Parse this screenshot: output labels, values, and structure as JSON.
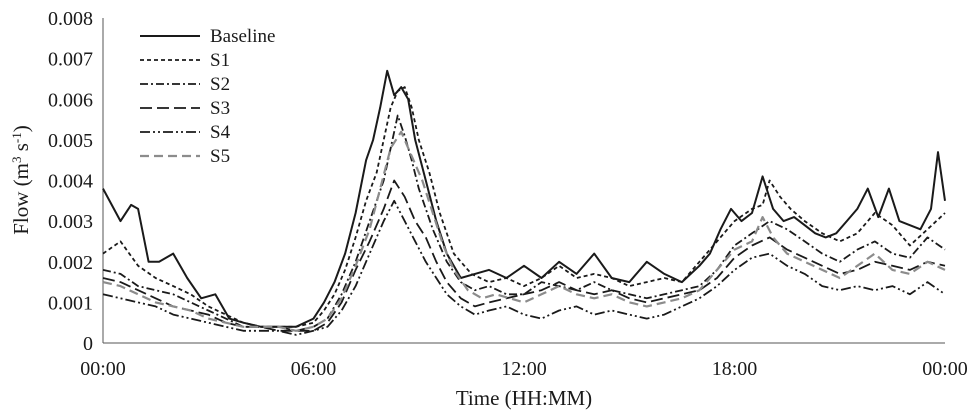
{
  "chart_data": {
    "type": "line",
    "xlabel": "Time (HH:MM)",
    "ylabel_main": "Flow (m",
    "ylabel_sup1": "3",
    "ylabel_mid": " s",
    "ylabel_sup2": "-1",
    "ylabel_end": ")",
    "xlim": [
      0,
      24
    ],
    "ylim": [
      0,
      0.008
    ],
    "x_ticks": [
      {
        "value": 0,
        "label": "00:00"
      },
      {
        "value": 6,
        "label": "06:00"
      },
      {
        "value": 12,
        "label": "12:00"
      },
      {
        "value": 18,
        "label": "18:00"
      },
      {
        "value": 24,
        "label": "00:00"
      }
    ],
    "y_ticks": [
      {
        "value": 0,
        "label": "0"
      },
      {
        "value": 0.001,
        "label": "0.001"
      },
      {
        "value": 0.002,
        "label": "0.002"
      },
      {
        "value": 0.003,
        "label": "0.003"
      },
      {
        "value": 0.004,
        "label": "0.004"
      },
      {
        "value": 0.005,
        "label": "0.005"
      },
      {
        "value": 0.006,
        "label": "0.006"
      },
      {
        "value": 0.007,
        "label": "0.007"
      },
      {
        "value": 0.008,
        "label": "0.008"
      }
    ],
    "grid": false,
    "legend_position": "top-left",
    "series": [
      {
        "name": "Baseline",
        "color": "#1a1a1a",
        "dash": "",
        "width": 2,
        "x": [
          0,
          0.5,
          0.8,
          1.0,
          1.3,
          1.6,
          2.0,
          2.4,
          2.8,
          3.2,
          3.6,
          4.0,
          4.5,
          5.0,
          5.5,
          6.0,
          6.3,
          6.6,
          6.9,
          7.2,
          7.5,
          7.7,
          7.9,
          8.1,
          8.3,
          8.5,
          8.7,
          8.9,
          9.2,
          9.5,
          9.8,
          10.2,
          10.6,
          11.0,
          11.5,
          12.0,
          12.5,
          13.0,
          13.5,
          14.0,
          14.5,
          15.0,
          15.5,
          16.0,
          16.5,
          17.0,
          17.3,
          17.6,
          17.9,
          18.2,
          18.5,
          18.8,
          19.1,
          19.4,
          19.7,
          20.0,
          20.3,
          20.6,
          20.9,
          21.2,
          21.5,
          21.8,
          22.1,
          22.4,
          22.7,
          23.0,
          23.3,
          23.6,
          23.8,
          24.0
        ],
        "y": [
          0.0038,
          0.003,
          0.0034,
          0.0033,
          0.002,
          0.002,
          0.0022,
          0.0016,
          0.0011,
          0.0012,
          0.0006,
          0.0005,
          0.0004,
          0.0004,
          0.0004,
          0.0006,
          0.001,
          0.0015,
          0.0022,
          0.0032,
          0.0045,
          0.005,
          0.0058,
          0.0067,
          0.0061,
          0.0063,
          0.006,
          0.005,
          0.004,
          0.003,
          0.0022,
          0.0016,
          0.0017,
          0.0018,
          0.0016,
          0.0019,
          0.0016,
          0.002,
          0.0017,
          0.0022,
          0.0016,
          0.0015,
          0.002,
          0.0017,
          0.0015,
          0.0019,
          0.0022,
          0.0028,
          0.0033,
          0.003,
          0.0032,
          0.0041,
          0.0033,
          0.003,
          0.0031,
          0.0029,
          0.0027,
          0.0026,
          0.0027,
          0.003,
          0.0033,
          0.0038,
          0.0031,
          0.0038,
          0.003,
          0.0029,
          0.0028,
          0.0033,
          0.0047,
          0.0035
        ]
      },
      {
        "name": "S1",
        "color": "#1a1a1a",
        "dash": "4,3",
        "width": 1.8,
        "x": [
          0,
          0.5,
          1.0,
          1.5,
          2.0,
          2.5,
          3.0,
          3.5,
          4.0,
          4.5,
          5.0,
          5.5,
          6.0,
          6.3,
          6.6,
          6.9,
          7.2,
          7.5,
          7.8,
          8.0,
          8.2,
          8.4,
          8.6,
          8.8,
          9.0,
          9.3,
          9.6,
          10.0,
          10.5,
          11.0,
          11.5,
          12.0,
          12.5,
          13.0,
          13.5,
          14.0,
          14.5,
          15.0,
          15.5,
          16.0,
          16.5,
          17.0,
          17.5,
          18.0,
          18.5,
          18.8,
          19.0,
          19.3,
          19.6,
          20.0,
          20.5,
          21.0,
          21.5,
          22.0,
          22.5,
          23.0,
          23.5,
          24.0
        ],
        "y": [
          0.0022,
          0.0025,
          0.0019,
          0.0016,
          0.0014,
          0.0012,
          0.0009,
          0.0007,
          0.0005,
          0.0004,
          0.0004,
          0.0004,
          0.0005,
          0.0008,
          0.0012,
          0.0018,
          0.0026,
          0.0035,
          0.0042,
          0.005,
          0.0058,
          0.0062,
          0.0063,
          0.0058,
          0.005,
          0.0042,
          0.0032,
          0.0022,
          0.0017,
          0.0015,
          0.0016,
          0.0014,
          0.0016,
          0.0019,
          0.0016,
          0.0017,
          0.0016,
          0.0014,
          0.0015,
          0.0016,
          0.0015,
          0.002,
          0.0025,
          0.003,
          0.0033,
          0.0034,
          0.004,
          0.0036,
          0.0033,
          0.003,
          0.0027,
          0.0025,
          0.0027,
          0.0032,
          0.0029,
          0.0024,
          0.0028,
          0.0032
        ]
      },
      {
        "name": "S2",
        "color": "#1a1a1a",
        "dash": "8,3,2,3",
        "width": 1.8,
        "x": [
          0,
          0.5,
          1.0,
          1.5,
          2.0,
          2.5,
          3.0,
          3.5,
          4.0,
          4.5,
          5.0,
          5.5,
          6.0,
          6.4,
          6.8,
          7.2,
          7.6,
          8.0,
          8.2,
          8.4,
          8.6,
          8.8,
          9.0,
          9.4,
          9.8,
          10.2,
          10.6,
          11.0,
          11.5,
          12.0,
          12.5,
          13.0,
          13.5,
          14.0,
          14.5,
          15.0,
          15.5,
          16.0,
          16.5,
          17.0,
          17.5,
          18.0,
          18.5,
          19.0,
          19.5,
          20.0,
          20.5,
          21.0,
          21.5,
          22.0,
          22.5,
          23.0,
          23.5,
          24.0
        ],
        "y": [
          0.0018,
          0.0017,
          0.0014,
          0.0013,
          0.0012,
          0.001,
          0.0008,
          0.0006,
          0.0004,
          0.0004,
          0.0004,
          0.0003,
          0.0004,
          0.0006,
          0.0012,
          0.002,
          0.003,
          0.004,
          0.0048,
          0.0056,
          0.0051,
          0.0045,
          0.0038,
          0.0028,
          0.002,
          0.0015,
          0.0013,
          0.0014,
          0.0012,
          0.0012,
          0.0015,
          0.0014,
          0.0013,
          0.0015,
          0.0013,
          0.0012,
          0.0011,
          0.0012,
          0.0013,
          0.0014,
          0.0018,
          0.0024,
          0.0027,
          0.003,
          0.0028,
          0.0025,
          0.0022,
          0.002,
          0.0023,
          0.0025,
          0.0022,
          0.0021,
          0.0026,
          0.0023
        ]
      },
      {
        "name": "S3",
        "color": "#1a1a1a",
        "dash": "12,5",
        "width": 1.8,
        "x": [
          0,
          0.5,
          1.0,
          1.5,
          2.0,
          2.5,
          3.0,
          3.5,
          4.0,
          4.5,
          5.0,
          5.5,
          6.0,
          6.4,
          6.8,
          7.2,
          7.6,
          8.0,
          8.3,
          8.6,
          8.9,
          9.2,
          9.5,
          9.8,
          10.2,
          10.6,
          11.0,
          11.5,
          12.0,
          12.5,
          13.0,
          13.5,
          14.0,
          14.5,
          15.0,
          15.5,
          16.0,
          16.5,
          17.0,
          17.5,
          18.0,
          18.5,
          19.0,
          19.5,
          20.0,
          20.5,
          21.0,
          21.5,
          22.0,
          22.5,
          23.0,
          23.5,
          24.0
        ],
        "y": [
          0.0016,
          0.0015,
          0.0013,
          0.0011,
          0.0009,
          0.0008,
          0.0007,
          0.0005,
          0.0004,
          0.0004,
          0.0003,
          0.0003,
          0.0003,
          0.0005,
          0.001,
          0.0018,
          0.0025,
          0.0033,
          0.004,
          0.0036,
          0.003,
          0.0026,
          0.002,
          0.0015,
          0.0011,
          0.0009,
          0.001,
          0.0011,
          0.0012,
          0.0013,
          0.0015,
          0.0013,
          0.0012,
          0.0013,
          0.0011,
          0.001,
          0.0011,
          0.0012,
          0.0013,
          0.0016,
          0.0021,
          0.0024,
          0.0026,
          0.0023,
          0.0021,
          0.0019,
          0.0017,
          0.0018,
          0.002,
          0.0019,
          0.0018,
          0.002,
          0.0019
        ]
      },
      {
        "name": "S4",
        "color": "#1a1a1a",
        "dash": "10,3,2,3,2,3",
        "width": 1.8,
        "x": [
          0,
          0.5,
          1.0,
          1.5,
          2.0,
          2.5,
          3.0,
          3.5,
          4.0,
          4.5,
          5.0,
          5.5,
          6.0,
          6.4,
          6.8,
          7.2,
          7.6,
          8.0,
          8.3,
          8.6,
          8.9,
          9.2,
          9.5,
          9.8,
          10.2,
          10.6,
          11.0,
          11.5,
          12.0,
          12.5,
          13.0,
          13.5,
          14.0,
          14.5,
          15.0,
          15.5,
          16.0,
          16.5,
          17.0,
          17.5,
          18.0,
          18.5,
          19.0,
          19.5,
          20.0,
          20.5,
          21.0,
          21.5,
          22.0,
          22.5,
          23.0,
          23.5,
          24.0
        ],
        "y": [
          0.0012,
          0.0011,
          0.001,
          0.0009,
          0.0007,
          0.0006,
          0.0005,
          0.0004,
          0.0003,
          0.0003,
          0.0003,
          0.0002,
          0.0003,
          0.0004,
          0.0008,
          0.0014,
          0.0022,
          0.003,
          0.0035,
          0.003,
          0.0025,
          0.002,
          0.0016,
          0.0012,
          0.0009,
          0.0007,
          0.0008,
          0.0009,
          0.0007,
          0.0006,
          0.0008,
          0.0009,
          0.0007,
          0.0008,
          0.0007,
          0.0006,
          0.0007,
          0.0009,
          0.0011,
          0.0014,
          0.0018,
          0.0021,
          0.0022,
          0.0019,
          0.0017,
          0.0014,
          0.0013,
          0.0014,
          0.0013,
          0.0014,
          0.0012,
          0.0015,
          0.0012
        ]
      },
      {
        "name": "S5",
        "color": "#8c8c8c",
        "dash": "9,5",
        "width": 2.2,
        "x": [
          0,
          0.5,
          1.0,
          1.5,
          2.0,
          2.5,
          3.0,
          3.5,
          4.0,
          4.5,
          5.0,
          5.5,
          6.0,
          6.4,
          6.8,
          7.2,
          7.6,
          7.9,
          8.2,
          8.5,
          8.8,
          9.1,
          9.4,
          9.7,
          10.0,
          10.4,
          10.8,
          11.2,
          11.6,
          12.0,
          12.5,
          13.0,
          13.5,
          14.0,
          14.5,
          15.0,
          15.5,
          16.0,
          16.5,
          17.0,
          17.5,
          18.0,
          18.5,
          18.8,
          19.1,
          19.5,
          20.0,
          20.5,
          21.0,
          21.5,
          22.0,
          22.5,
          23.0,
          23.5,
          24.0
        ],
        "y": [
          0.0015,
          0.0014,
          0.0012,
          0.001,
          0.0009,
          0.0008,
          0.0006,
          0.0005,
          0.0004,
          0.0004,
          0.0004,
          0.0003,
          0.0004,
          0.0006,
          0.0011,
          0.0019,
          0.0028,
          0.0038,
          0.0048,
          0.0052,
          0.0046,
          0.004,
          0.0032,
          0.0024,
          0.0018,
          0.0013,
          0.0011,
          0.0012,
          0.0011,
          0.001,
          0.0012,
          0.0014,
          0.0012,
          0.0011,
          0.0012,
          0.001,
          0.0009,
          0.001,
          0.0011,
          0.0013,
          0.0018,
          0.0023,
          0.0025,
          0.0031,
          0.0026,
          0.0022,
          0.002,
          0.0018,
          0.0016,
          0.0019,
          0.0022,
          0.0018,
          0.0017,
          0.002,
          0.0018
        ]
      }
    ]
  }
}
